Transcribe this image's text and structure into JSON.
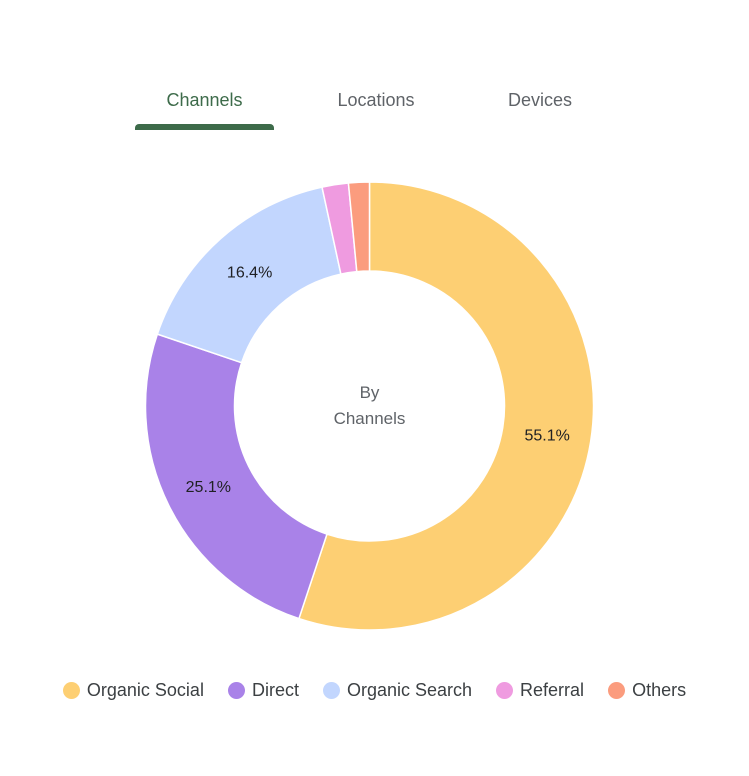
{
  "tabs": [
    {
      "label": "Channels",
      "active": true
    },
    {
      "label": "Locations",
      "active": false
    },
    {
      "label": "Devices",
      "active": false
    }
  ],
  "accent_color": "#3d6b4a",
  "chart_data": {
    "type": "pie",
    "variant": "donut",
    "center_label": [
      "By",
      "Channels"
    ],
    "categories": [
      "Organic Social",
      "Direct",
      "Organic Search",
      "Referral",
      "Others"
    ],
    "values": [
      55.1,
      25.1,
      16.4,
      1.9,
      1.5
    ],
    "data_labels": [
      "55.1%",
      "25.1%",
      "16.4%",
      "",
      ""
    ],
    "colors": [
      "#fdcf73",
      "#a982e8",
      "#c2d6fe",
      "#ef9be0",
      "#fb9c7e"
    ],
    "legend_position": "bottom"
  }
}
